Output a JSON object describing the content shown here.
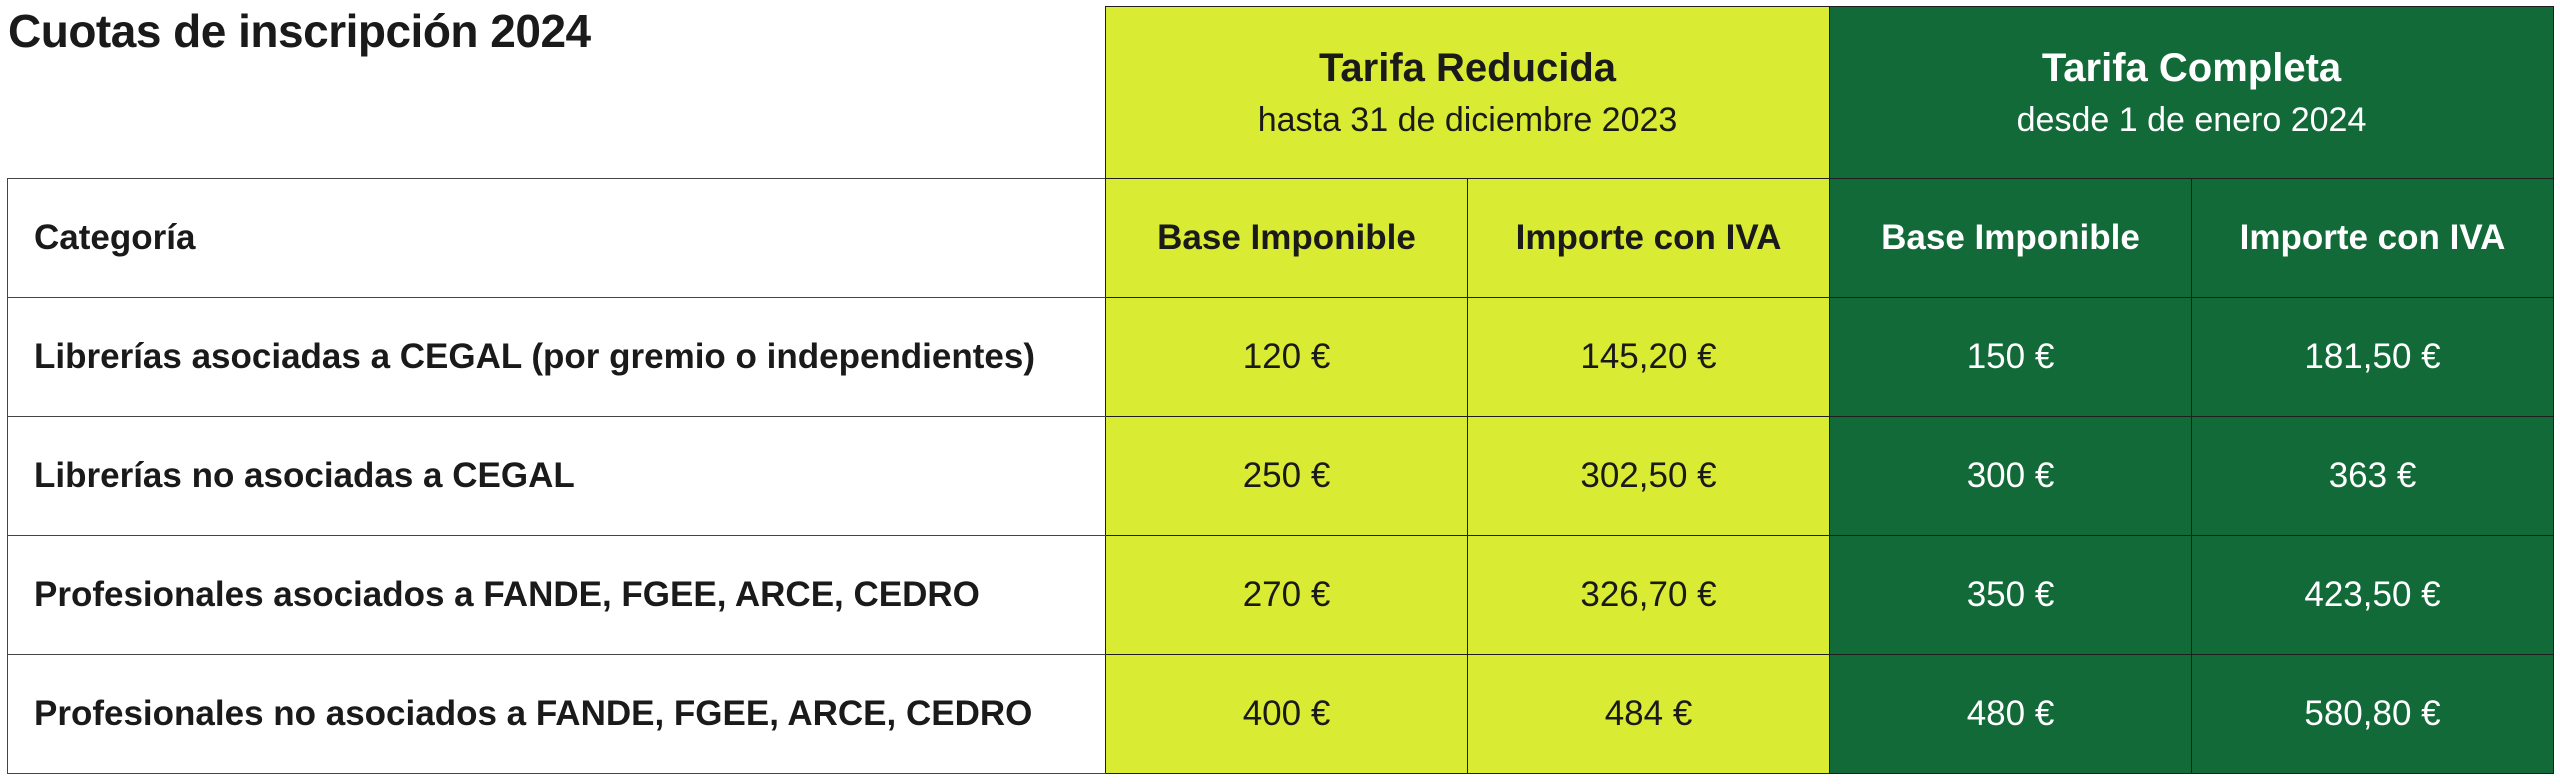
{
  "title": "Cuotas de inscripción 2024",
  "groups": [
    {
      "title": "Tarifa Reducida",
      "subtitle": "hasta 31 de diciembre 2023",
      "color": "#d9eb32"
    },
    {
      "title": "Tarifa Completa",
      "subtitle": "desde 1 de enero 2024",
      "color": "#126a38"
    }
  ],
  "headers": {
    "category": "Categoría",
    "reduced_base": "Base Imponible",
    "reduced_iva": "Importe con IVA",
    "full_base": "Base Imponible",
    "full_iva": "Importe con IVA"
  },
  "rows": [
    {
      "category": "Librerías asociadas a CEGAL (por gremio o independientes)",
      "reduced_base": "120 €",
      "reduced_iva": "145,20 €",
      "full_base": "150 €",
      "full_iva": "181,50 €"
    },
    {
      "category": "Librerías no asociadas a CEGAL",
      "reduced_base": "250 €",
      "reduced_iva": "302,50 €",
      "full_base": "300 €",
      "full_iva": "363 €"
    },
    {
      "category": "Profesionales asociados a FANDE, FGEE, ARCE, CEDRO",
      "reduced_base": "270 €",
      "reduced_iva": "326,70 €",
      "full_base": "350 €",
      "full_iva": "423,50 €"
    },
    {
      "category": "Profesionales no asociados a FANDE, FGEE, ARCE, CEDRO",
      "reduced_base": "400 €",
      "reduced_iva": "484 €",
      "full_base": "480 €",
      "full_iva": "580,80 €"
    }
  ]
}
